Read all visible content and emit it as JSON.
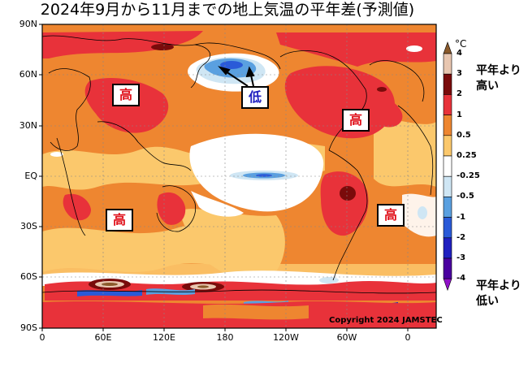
{
  "title": "2024年9月から11月までの地上気温の平年差(予測値)",
  "lat_labels": [
    "90N",
    "60N",
    "30N",
    "EQ",
    "30S",
    "60S",
    "90S"
  ],
  "lon_labels": [
    "0",
    "60E",
    "120E",
    "180",
    "120W",
    "60W",
    "0"
  ],
  "colorbar": {
    "unit": "°C",
    "ticks": [
      "4",
      "3",
      "2",
      "1",
      "0.5",
      "0.25",
      "-0.25",
      "-0.5",
      "-1",
      "-2",
      "-3",
      "-4"
    ],
    "colors": [
      "#8a5a2b",
      "#e8c6b0",
      "#7a0b0b",
      "#e8323a",
      "#ee8630",
      "#fbc86c",
      "#ffffff",
      "#cfe6f4",
      "#5aa0e0",
      "#2a5ad8",
      "#2020c0",
      "#4a00a0",
      "#9010c8"
    ],
    "label_high": "平年より\n高い",
    "label_low": "平年より\n低い"
  },
  "annotations": {
    "high": "高",
    "low": "低"
  },
  "copyright": "Copyright 2024 JAMSTEC"
}
